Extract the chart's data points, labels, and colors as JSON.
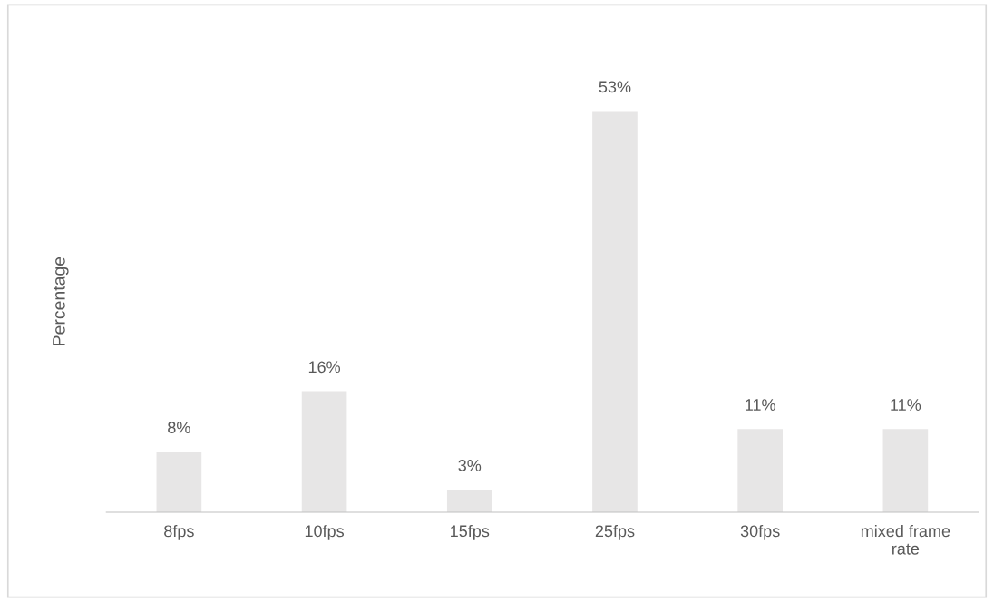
{
  "chart_data": {
    "type": "bar",
    "ylabel": "Percentage",
    "categories": [
      "8fps",
      "10fps",
      "15fps",
      "25fps",
      "30fps",
      "mixed frame\nrate"
    ],
    "values": [
      8,
      16,
      3,
      53,
      11,
      11
    ],
    "value_labels": [
      "8%",
      "16%",
      "3%",
      "53%",
      "11%",
      "11%"
    ],
    "color": "#e7e6e6",
    "grid": false,
    "legend": false
  }
}
